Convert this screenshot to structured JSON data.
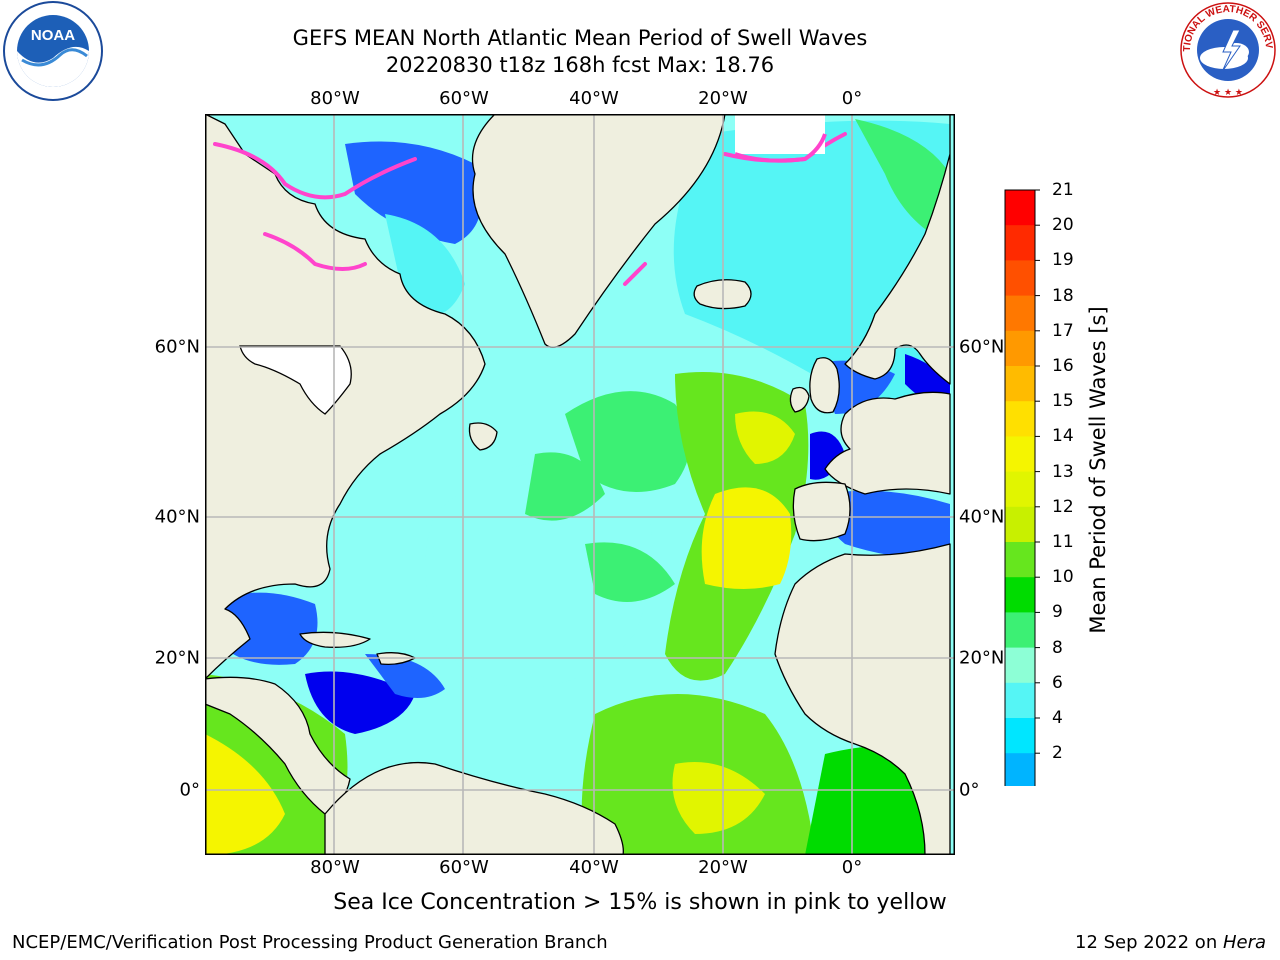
{
  "title_line1": "GEFS MEAN North Atlantic Mean Period of Swell Waves",
  "title_line2": "20220830 t18z 168h fcst   Max: 18.76",
  "map": {
    "lon_ticks": [
      "80°W",
      "60°W",
      "40°W",
      "20°W",
      "0°"
    ],
    "lat_ticks": [
      "60°N",
      "40°N",
      "20°N",
      "0°"
    ]
  },
  "colorbar": {
    "label": "Mean Period of Swell Waves [s]",
    "ticks": [
      "21",
      "20",
      "19",
      "18",
      "17",
      "16",
      "15",
      "14",
      "13",
      "12",
      "11",
      "10",
      "9",
      "8",
      "6",
      "4",
      "2"
    ],
    "colors": [
      "#ff0000",
      "#ff2a00",
      "#ff5000",
      "#ff7800",
      "#ff9900",
      "#ffbb00",
      "#ffe000",
      "#f5f500",
      "#e1f500",
      "#c8f000",
      "#66e61e",
      "#00dc00",
      "#3cf074",
      "#8dffd6",
      "#55f5f5",
      "#00e6ff",
      "#00b4ff",
      "#0064ff"
    ],
    "extend_color": "#0000ee"
  },
  "colors": {
    "land": "#efefdf",
    "ocean_deep_blue": "#0000ee",
    "ocean_blue": "#1e64ff",
    "ocean_cyan": "#8dfff6",
    "ocean_green": "#3cf074",
    "ocean_yellow": "#f5f500",
    "sea_ice": "#ff44cc"
  },
  "note": "Sea Ice Concentration > 15% is shown in pink to yellow",
  "footer_left": "NCEP/EMC/Verification Post Processing Product Generation Branch",
  "footer_right_date": "12 Sep 2022 on ",
  "footer_right_machine": "Hera",
  "logos": {
    "noaa_text": "NOAA",
    "nws_text": "NATIONAL WEATHER SERVICE"
  }
}
